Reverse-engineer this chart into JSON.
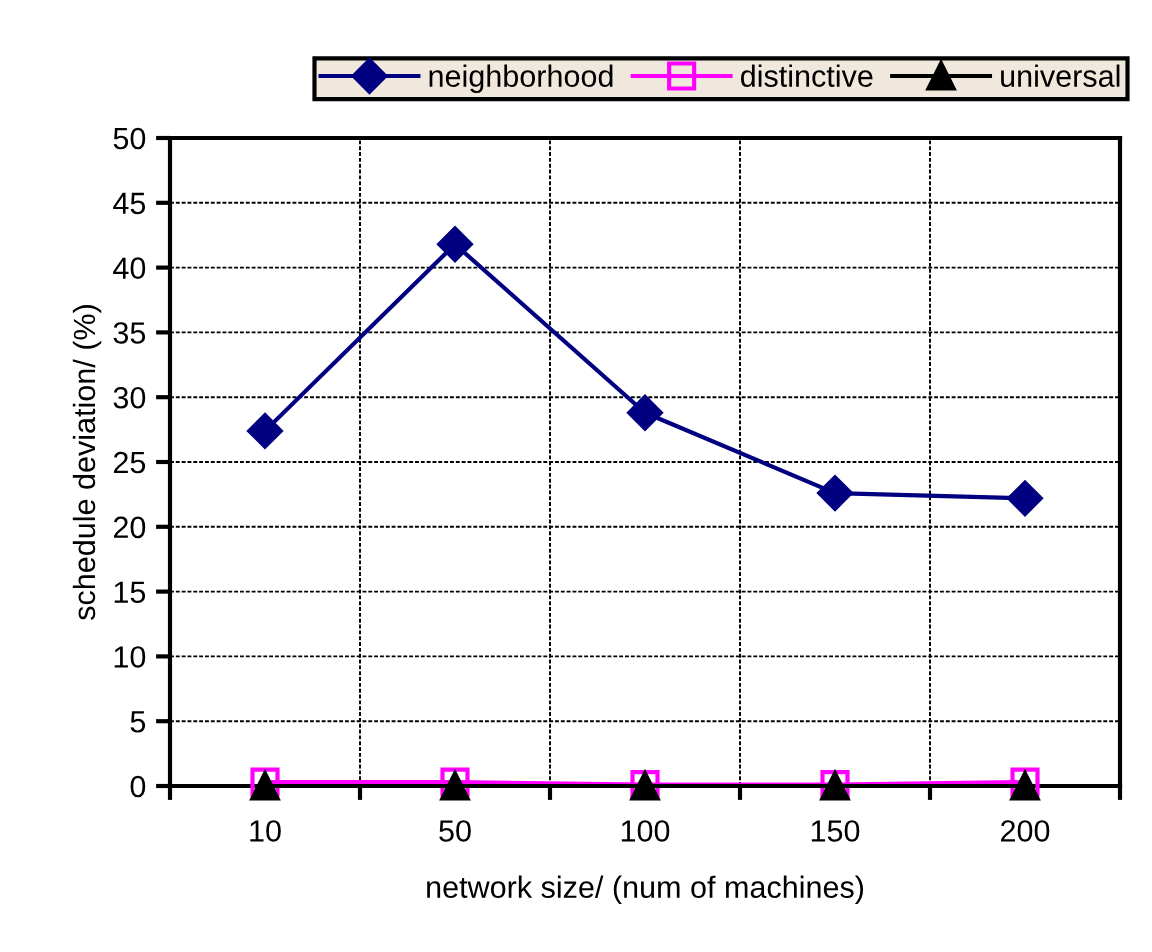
{
  "chart_data": {
    "type": "line",
    "xlabel": "network size/ (num of machines)",
    "ylabel": "schedule deviation/ (%)",
    "categories": [
      "10",
      "50",
      "100",
      "150",
      "200"
    ],
    "series": [
      {
        "name": "neighborhood",
        "color": "#000080",
        "marker": "diamond",
        "values": [
          27.4,
          41.8,
          28.8,
          22.6,
          22.2
        ]
      },
      {
        "name": "distinctive",
        "color": "#ff00ff",
        "marker": "square",
        "values": [
          0.3,
          0.3,
          0.1,
          0.1,
          0.3
        ]
      },
      {
        "name": "universal",
        "color": "#000000",
        "marker": "triangle",
        "values": [
          0,
          0,
          0,
          0,
          0
        ]
      }
    ],
    "ylim": [
      0,
      50
    ],
    "yticks": [
      0,
      5,
      10,
      15,
      20,
      25,
      30,
      35,
      40,
      45,
      50
    ],
    "grid": true,
    "legend": "top",
    "line_style": "solid"
  }
}
